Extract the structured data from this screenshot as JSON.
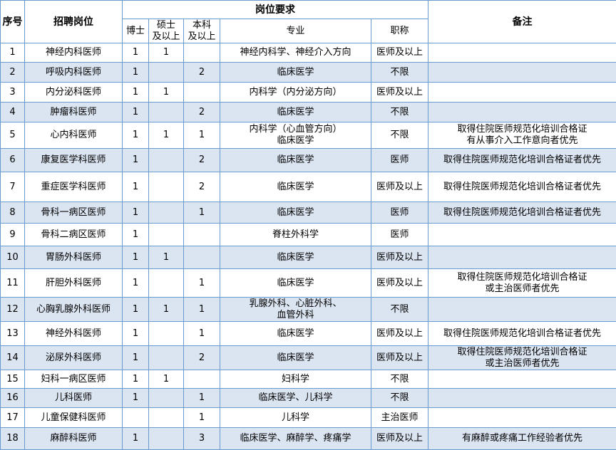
{
  "header": {
    "index": "序号",
    "position": "招聘岗位",
    "requirements": "岗位要求",
    "phd": "博士",
    "master": "硕士\n及以上",
    "bachelor": "本科\n及以上",
    "major": "专业",
    "title": "职称",
    "note": "备注"
  },
  "rows": [
    {
      "no": "1",
      "position": "神经内科医师",
      "phd": "1",
      "master": "1",
      "bachelor": "",
      "major": "神经内科学、神经介入方向",
      "title": "医师及以上",
      "note": ""
    },
    {
      "no": "2",
      "position": "呼吸内科医师",
      "phd": "1",
      "master": "",
      "bachelor": "2",
      "major": "临床医学",
      "title": "不限",
      "note": ""
    },
    {
      "no": "3",
      "position": "内分泌科医师",
      "phd": "1",
      "master": "1",
      "bachelor": "",
      "major": "内科学（内分泌方向）",
      "title": "医师及以上",
      "note": ""
    },
    {
      "no": "4",
      "position": "肿瘤科医师",
      "phd": "1",
      "master": "",
      "bachelor": "2",
      "major": "临床医学",
      "title": "不限",
      "note": ""
    },
    {
      "no": "5",
      "position": "心内科医师",
      "phd": "1",
      "master": "1",
      "bachelor": "1",
      "major": "内科学（心血管方向）\n临床医学",
      "title": "不限",
      "note": "取得住院医师规范化培训合格证\n有从事介入工作意向者优先"
    },
    {
      "no": "6",
      "position": "康复医学科医师",
      "phd": "1",
      "master": "",
      "bachelor": "2",
      "major": "临床医学",
      "title": "医师",
      "note": "取得住院医师规范化培训合格证者优先"
    },
    {
      "no": "7",
      "position": "重症医学科医师",
      "phd": "1",
      "master": "",
      "bachelor": "2",
      "major": "临床医学",
      "title": "医师及以上",
      "note": "取得住院医师规范化培训合格证者优先"
    },
    {
      "no": "8",
      "position": "骨科一病区医师",
      "phd": "1",
      "master": "",
      "bachelor": "1",
      "major": "临床医学",
      "title": "医师",
      "note": "取得住院医师规范化培训合格证者优先"
    },
    {
      "no": "9",
      "position": "骨科二病区医师",
      "phd": "1",
      "master": "",
      "bachelor": "",
      "major": "脊柱外科学",
      "title": "医师",
      "note": ""
    },
    {
      "no": "10",
      "position": "胃肠外科医师",
      "phd": "1",
      "master": "1",
      "bachelor": "",
      "major": "临床医学",
      "title": "医师及以上",
      "note": ""
    },
    {
      "no": "11",
      "position": "肝胆外科医师",
      "phd": "1",
      "master": "",
      "bachelor": "1",
      "major": "临床医学",
      "title": "医师及以上",
      "note": "取得住院医师规范化培训合格证\n或主治医师者优先"
    },
    {
      "no": "12",
      "position": "心胸乳腺外科医师",
      "phd": "1",
      "master": "1",
      "bachelor": "1",
      "major": "乳腺外科、心脏外科、\n血管外科",
      "title": "不限",
      "note": ""
    },
    {
      "no": "13",
      "position": "神经外科医师",
      "phd": "1",
      "master": "",
      "bachelor": "1",
      "major": "临床医学",
      "title": "医师及以上",
      "note": "取得住院医师规范化培训合格证者优先"
    },
    {
      "no": "14",
      "position": "泌尿外科医师",
      "phd": "1",
      "master": "",
      "bachelor": "2",
      "major": "临床医学",
      "title": "医师及以上",
      "note": "取得住院医师规范化培训合格证\n或主治医师者优先"
    },
    {
      "no": "15",
      "position": "妇科一病区医师",
      "phd": "1",
      "master": "1",
      "bachelor": "",
      "major": "妇科学",
      "title": "不限",
      "note": ""
    },
    {
      "no": "16",
      "position": "儿科医师",
      "phd": "1",
      "master": "",
      "bachelor": "1",
      "major": "临床医学、儿科学",
      "title": "不限",
      "note": ""
    },
    {
      "no": "17",
      "position": "儿童保健科医师",
      "phd": "",
      "master": "",
      "bachelor": "1",
      "major": "儿科学",
      "title": "主治医师",
      "note": ""
    },
    {
      "no": "18",
      "position": "麻醉科医师",
      "phd": "1",
      "master": "",
      "bachelor": "3",
      "major": "临床医学、麻醉学、疼痛学",
      "title": "医师及以上",
      "note": "有麻醉或疼痛工作经验者优先"
    }
  ]
}
